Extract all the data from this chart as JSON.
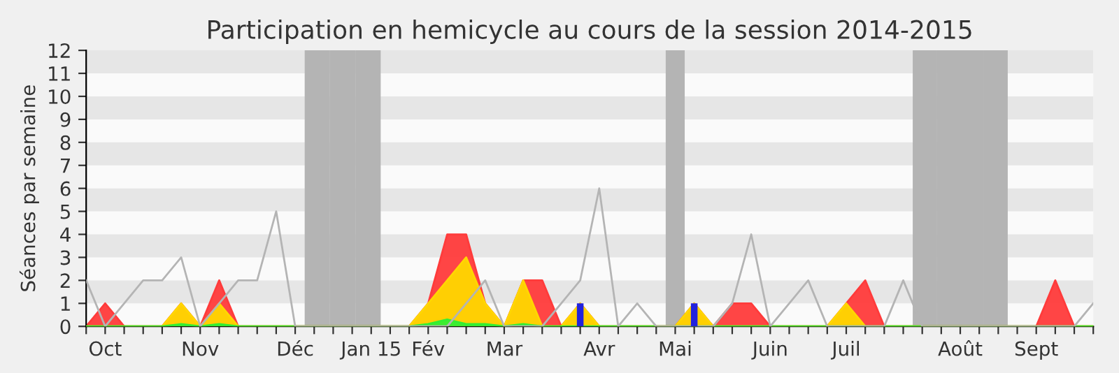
{
  "chart_data": {
    "type": "area",
    "title": "Participation en hemicycle au cours de la session 2014-2015",
    "ylabel": "Séances par semaine",
    "categories": [
      null,
      "Oct",
      null,
      null,
      null,
      null,
      "Nov",
      null,
      null,
      null,
      null,
      "Déc",
      null,
      null,
      null,
      "Jan 15",
      null,
      null,
      "Fév",
      null,
      null,
      null,
      "Mar",
      null,
      null,
      null,
      null,
      "Avr",
      null,
      null,
      null,
      "Mai",
      null,
      null,
      null,
      null,
      "Juin",
      null,
      null,
      null,
      "Juil",
      null,
      null,
      null,
      null,
      null,
      "Août",
      null,
      null,
      null,
      "Sept",
      null,
      null,
      null
    ],
    "ylim": [
      0,
      12
    ],
    "yticks": [
      0,
      1,
      2,
      3,
      4,
      5,
      6,
      7,
      8,
      9,
      10,
      11,
      12
    ],
    "series": [
      {
        "color": "#ff3b3b",
        "values": [
          0,
          1,
          0,
          0,
          0,
          1,
          0,
          2,
          0,
          0,
          0,
          0,
          0,
          0,
          0,
          0,
          0,
          0,
          1,
          4,
          4,
          1,
          0,
          2,
          2,
          0,
          1,
          0,
          0,
          0,
          0,
          0,
          1,
          0,
          1,
          1,
          0,
          0,
          0,
          0,
          1,
          2,
          0,
          0,
          0,
          0,
          0,
          0,
          0,
          0,
          0,
          2,
          0,
          0
        ]
      },
      {
        "color": "#ffd700",
        "values": [
          0,
          0,
          0,
          0,
          0,
          1,
          0,
          1,
          0,
          0,
          0,
          0,
          0,
          0,
          0,
          0,
          0,
          0,
          1,
          2,
          3,
          1,
          0,
          2,
          0,
          0,
          1,
          0,
          0,
          0,
          0,
          0,
          1,
          0,
          0,
          0,
          0,
          0,
          0,
          0,
          1,
          0,
          0,
          0,
          0,
          0,
          0,
          0,
          0,
          0,
          0,
          0,
          0,
          0
        ]
      },
      {
        "color": "#33ee33",
        "values": [
          0,
          0,
          0,
          0,
          0,
          0.1,
          0,
          0.1,
          0,
          0,
          0,
          0,
          0,
          0,
          0,
          0,
          0,
          0,
          0.1,
          0.3,
          0.1,
          0.1,
          0,
          0.1,
          0,
          0,
          0,
          0,
          0,
          0,
          0,
          0,
          0,
          0,
          0,
          0,
          0,
          0,
          0,
          0,
          0,
          0,
          0,
          0,
          0,
          0,
          0,
          0,
          0,
          0,
          0,
          0,
          0,
          0
        ]
      },
      {
        "type": "line",
        "color": "#b4b4b4",
        "values": [
          2,
          0,
          1,
          2,
          2,
          3,
          0,
          1,
          2,
          2,
          5,
          0,
          0,
          0,
          0,
          0,
          0,
          0,
          0,
          0,
          1,
          2,
          0,
          0,
          0,
          1,
          2,
          6,
          0,
          1,
          0,
          0,
          0,
          0,
          1,
          4,
          0,
          1,
          2,
          0,
          0,
          0,
          0,
          2,
          0,
          0,
          0,
          0,
          0,
          0,
          0,
          0,
          0,
          1
        ]
      },
      {
        "type": "bar",
        "color": "#2222dd",
        "values": [
          0,
          0,
          0,
          0,
          0,
          0,
          0,
          0,
          0,
          0,
          0,
          0,
          0,
          0,
          0,
          0,
          0,
          0,
          0,
          0,
          0,
          0,
          0,
          0,
          0,
          0,
          1,
          0,
          0,
          0,
          0,
          0,
          1,
          0,
          0,
          0,
          0,
          0,
          0,
          0,
          0,
          0,
          0,
          0,
          0,
          0,
          0,
          0,
          0,
          0,
          0,
          0,
          0,
          0
        ]
      }
    ]
  }
}
